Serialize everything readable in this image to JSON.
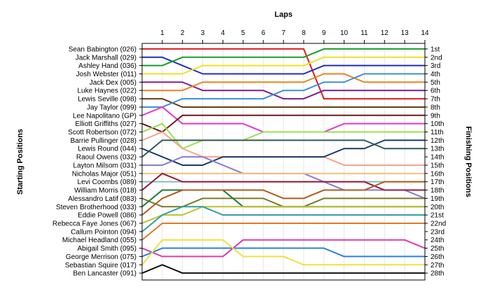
{
  "chart_data": {
    "type": "line",
    "title": "Laps",
    "xlabel": "Laps",
    "ylabel_left": "Starting Positions",
    "ylabel_right": "Finishing Positions",
    "laps": [
      1,
      2,
      3,
      4,
      5,
      6,
      7,
      8,
      9,
      10,
      11,
      12,
      13,
      14
    ],
    "position_count": 28,
    "finish_labels": [
      "1st",
      "2nd",
      "3rd",
      "4th",
      "5th",
      "6th",
      "7th",
      "8th",
      "9th",
      "10th",
      "11th",
      "12th",
      "13th",
      "14th",
      "15th",
      "16th",
      "17th",
      "18th",
      "19th",
      "20th",
      "21st",
      "22nd",
      "23rd",
      "24th",
      "25th",
      "26th",
      "27th",
      "28th"
    ],
    "grid": true,
    "drivers": [
      {
        "name": "Sean Babington (026)",
        "color": "#e01b1b",
        "positions": [
          1,
          1,
          1,
          1,
          1,
          1,
          1,
          1,
          1,
          7,
          7,
          7,
          7,
          7,
          7
        ]
      },
      {
        "name": "Jack Marshall (029)",
        "color": "#1f2fbf",
        "positions": [
          2,
          2,
          3,
          4,
          4,
          4,
          4,
          4,
          4,
          3,
          3,
          3,
          3,
          3,
          3
        ]
      },
      {
        "name": "Ashley Hand (036)",
        "color": "#1f9a2a",
        "positions": [
          3,
          3,
          2,
          2,
          2,
          2,
          2,
          2,
          2,
          1,
          1,
          1,
          1,
          1,
          1
        ]
      },
      {
        "name": "Josh Webster (011)",
        "color": "#f0e020",
        "positions": [
          4,
          4,
          4,
          3,
          3,
          3,
          3,
          3,
          3,
          2,
          2,
          2,
          2,
          2,
          2
        ]
      },
      {
        "name": "Jack Dex (005)",
        "color": "#7b1f8c",
        "positions": [
          5,
          5,
          5,
          6,
          6,
          6,
          6,
          7,
          7,
          6,
          6,
          6,
          6,
          6,
          6
        ]
      },
      {
        "name": "Luke Haynes (022)",
        "color": "#e5831f",
        "positions": [
          6,
          6,
          6,
          5,
          5,
          5,
          5,
          5,
          5,
          4,
          4,
          5,
          5,
          5,
          5
        ]
      },
      {
        "name": "Lewis Seville (098)",
        "color": "#6b3a12",
        "positions": [
          7,
          7,
          8,
          8,
          8,
          8,
          8,
          8,
          8,
          8,
          8,
          8,
          8,
          8,
          8
        ]
      },
      {
        "name": "Jay Taylor (099)",
        "color": "#3a8fd9",
        "positions": [
          8,
          8,
          7,
          7,
          7,
          7,
          7,
          6,
          6,
          5,
          5,
          4,
          4,
          4,
          4
        ]
      },
      {
        "name": "Lee Napolitano (GP)",
        "color": "#e23ad0",
        "positions": [
          9,
          8,
          10,
          10,
          10,
          10,
          11,
          11,
          11,
          11,
          10,
          10,
          10,
          10,
          10
        ]
      },
      {
        "name": "Elliott Griffiths (027)",
        "color": "#6a1a1a",
        "positions": [
          10,
          11,
          9,
          9,
          9,
          9,
          9,
          9,
          9,
          9,
          9,
          9,
          9,
          9,
          9
        ]
      },
      {
        "name": "Scott Robertson (072)",
        "color": "#98e04a",
        "positions": [
          11,
          10,
          13,
          12,
          12,
          12,
          11,
          11,
          11,
          11,
          11,
          11,
          11,
          11,
          11
        ]
      },
      {
        "name": "Barrie Pullinger (028)",
        "color": "#f5a58a",
        "positions": [
          12,
          11,
          13,
          14,
          14,
          14,
          14,
          14,
          14,
          14,
          15,
          15,
          15,
          15,
          15
        ]
      },
      {
        "name": "Lewis Round (044)",
        "color": "#1b3a6b",
        "positions": [
          13,
          14,
          15,
          15,
          14,
          14,
          14,
          14,
          14,
          14,
          13,
          13,
          12,
          12,
          12
        ]
      },
      {
        "name": "Raoul Owens (032)",
        "color": "#2f5a5a",
        "positions": [
          14,
          12,
          12,
          12,
          12,
          12,
          12,
          12,
          12,
          12,
          12,
          12,
          13,
          13,
          13
        ]
      },
      {
        "name": "Layton Milsom (031)",
        "color": "#8a7ad9",
        "positions": [
          15,
          15,
          14,
          14,
          15,
          16,
          16,
          16,
          16,
          17,
          18,
          18,
          18,
          18,
          19
        ]
      },
      {
        "name": "Nicholas Major (051)",
        "color": "#f5c07a",
        "positions": [
          16,
          16,
          16,
          16,
          16,
          16,
          16,
          16,
          16,
          16,
          16,
          16,
          16,
          16,
          16
        ]
      },
      {
        "name": "Levi Coombs (089)",
        "color": "#7ac0c0",
        "positions": [
          17,
          17,
          17,
          17,
          17,
          17,
          17,
          17,
          17,
          17,
          17,
          17,
          17,
          17,
          17
        ]
      },
      {
        "name": "William Morris (018)",
        "color": "#9a1a3a",
        "positions": [
          18,
          16,
          17,
          17,
          17,
          17,
          17,
          17,
          17,
          17,
          17,
          17,
          18,
          18,
          18
        ]
      },
      {
        "name": "Alessandro Latif (083)",
        "color": "#7a7a2a",
        "positions": [
          19,
          20,
          20,
          19,
          19,
          19,
          19,
          20,
          20,
          19,
          19,
          19,
          19,
          19,
          19
        ]
      },
      {
        "name": "Steven Brotherhood (033)",
        "color": "#1f7a3a",
        "positions": [
          20,
          18,
          18,
          18,
          18,
          20,
          20,
          20,
          20,
          20,
          20,
          20,
          20,
          20,
          20
        ]
      },
      {
        "name": "Eddie Powell (086)",
        "color": "#b25a1a",
        "positions": [
          21,
          19,
          18,
          18,
          18,
          18,
          18,
          19,
          19,
          18,
          18,
          18,
          17,
          17,
          17
        ]
      },
      {
        "name": "Rebecca Faye Jones (067)",
        "color": "#c0c02a",
        "positions": [
          22,
          21,
          21,
          20,
          20,
          20,
          20,
          20,
          20,
          20,
          20,
          20,
          20,
          20,
          20
        ]
      },
      {
        "name": "Callum Pointon (094)",
        "color": "#2aa0a0",
        "positions": [
          23,
          21,
          20,
          20,
          21,
          21,
          21,
          21,
          21,
          21,
          21,
          21,
          21,
          21,
          21
        ]
      },
      {
        "name": "Michael Headland (055)",
        "color": "#e07a2a",
        "positions": [
          24,
          22,
          22,
          22,
          22,
          22,
          22,
          22,
          22,
          22,
          22,
          22,
          22,
          22,
          22
        ]
      },
      {
        "name": "Abigail Smith (095)",
        "color": "#e03ab0",
        "positions": [
          25,
          26,
          26,
          26,
          26,
          24,
          24,
          24,
          24,
          24,
          24,
          24,
          24,
          24,
          25
        ]
      },
      {
        "name": "George Merrison (075)",
        "color": "#2a80e0",
        "positions": [
          26,
          25,
          25,
          25,
          25,
          25,
          25,
          25,
          25,
          25,
          26,
          26,
          26,
          26,
          26
        ]
      },
      {
        "name": "Sebastian Squire (017)",
        "color": "#f0e040",
        "positions": [
          27,
          24,
          24,
          24,
          24,
          26,
          26,
          26,
          27,
          27,
          27,
          27,
          27,
          27,
          27
        ]
      },
      {
        "name": "Ben Lancaster (091)",
        "color": "#111111",
        "positions": [
          28,
          27,
          28,
          28,
          28,
          28,
          28,
          28,
          28,
          28,
          28,
          28,
          28,
          28,
          28
        ]
      }
    ]
  }
}
